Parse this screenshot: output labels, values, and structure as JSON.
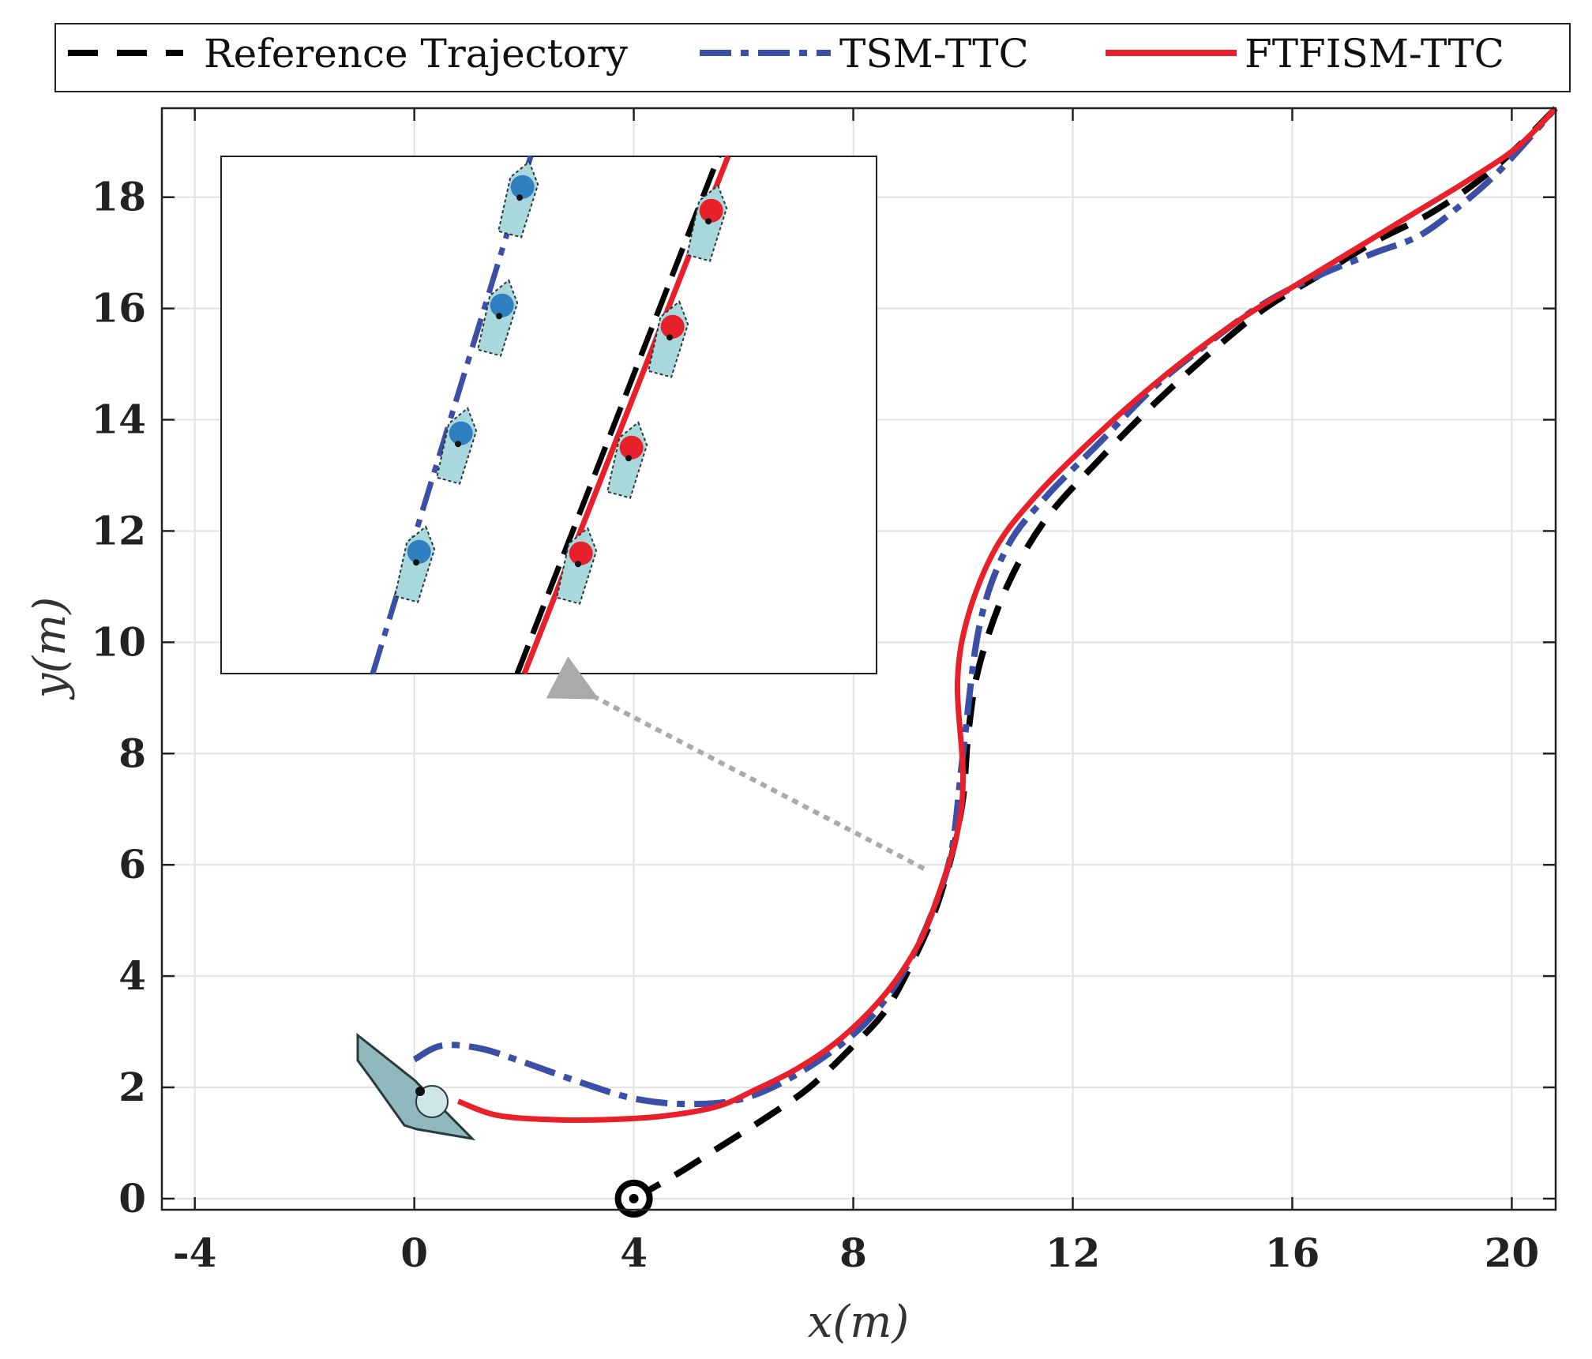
{
  "chart_data": {
    "type": "line",
    "title": "",
    "xlabel": "x(m)",
    "ylabel": "y(m)",
    "xlim": [
      -4.6,
      20.8
    ],
    "ylim": [
      -0.2,
      19.6
    ],
    "grid": true,
    "xticks": [
      {
        "value": -4,
        "label": "-4"
      },
      {
        "value": 0,
        "label": "0"
      },
      {
        "value": 4,
        "label": "4"
      },
      {
        "value": 8,
        "label": "8"
      },
      {
        "value": 12,
        "label": "12"
      },
      {
        "value": 16,
        "label": "16"
      },
      {
        "value": 20,
        "label": "20"
      }
    ],
    "yticks": [
      {
        "value": 0,
        "label": "0"
      },
      {
        "value": 2,
        "label": "2"
      },
      {
        "value": 4,
        "label": "4"
      },
      {
        "value": 6,
        "label": "6"
      },
      {
        "value": 8,
        "label": "8"
      },
      {
        "value": 10,
        "label": "10"
      },
      {
        "value": 12,
        "label": "12"
      },
      {
        "value": 14,
        "label": "14"
      },
      {
        "value": 16,
        "label": "16"
      },
      {
        "value": 18,
        "label": "18"
      }
    ],
    "legend": {
      "placement": "top",
      "entries": [
        {
          "label": "Reference Trajectory",
          "color": "#000000",
          "style": "dashed"
        },
        {
          "label": "TSM-TTC",
          "color": "#3a4fa5",
          "style": "dash-dot"
        },
        {
          "label": "FTFISM-TTC",
          "color": "#e8202a",
          "style": "solid"
        }
      ]
    },
    "series": [
      {
        "name": "Reference Trajectory",
        "color": "#000000",
        "style": "dashed",
        "x": [
          4.0,
          4.8,
          5.6,
          6.4,
          7.2,
          8.0,
          8.6,
          9.1,
          9.5,
          9.8,
          10.0,
          10.1,
          10.3,
          10.8,
          11.5,
          12.5,
          13.5,
          14.5,
          15.5,
          16.5,
          17.5,
          18.5,
          19.4,
          20.1,
          20.8
        ],
        "y": [
          0.0,
          0.45,
          0.95,
          1.45,
          2.0,
          2.75,
          3.4,
          4.3,
          5.2,
          6.2,
          7.2,
          8.4,
          9.6,
          11.0,
          12.2,
          13.3,
          14.3,
          15.2,
          16.0,
          16.6,
          17.2,
          17.7,
          18.3,
          18.9,
          19.6
        ]
      },
      {
        "name": "TSM-TTC",
        "color": "#3a4fa5",
        "style": "dash-dot",
        "x": [
          0.0,
          0.5,
          1.2,
          2.0,
          3.0,
          4.0,
          5.0,
          6.0,
          7.0,
          8.0,
          8.6,
          9.1,
          9.5,
          9.8,
          10.0,
          10.3,
          10.8,
          11.5,
          12.5,
          13.5,
          14.5,
          15.5,
          16.5,
          17.5,
          18.3,
          19.0,
          19.8,
          20.8
        ],
        "y": [
          2.5,
          2.75,
          2.7,
          2.45,
          2.1,
          1.8,
          1.7,
          1.8,
          2.25,
          2.95,
          3.6,
          4.4,
          5.3,
          6.3,
          8.0,
          10.3,
          11.7,
          12.6,
          13.6,
          14.6,
          15.4,
          16.1,
          16.6,
          17.0,
          17.3,
          17.8,
          18.5,
          19.6
        ]
      },
      {
        "name": "FTFISM-TTC",
        "color": "#e8202a",
        "style": "solid",
        "x": [
          0.8,
          1.5,
          2.5,
          3.5,
          4.5,
          5.5,
          6.2,
          7.0,
          7.8,
          8.6,
          9.2,
          9.6,
          9.9,
          10.0,
          9.9,
          10.1,
          10.6,
          11.3,
          12.2,
          13.2,
          14.2,
          15.2,
          16.2,
          17.2,
          18.2,
          19.2,
          20.1,
          20.8
        ],
        "y": [
          1.75,
          1.5,
          1.42,
          1.42,
          1.48,
          1.65,
          1.95,
          2.35,
          2.9,
          3.7,
          4.6,
          5.6,
          6.6,
          7.6,
          9.3,
          10.5,
          11.7,
          12.6,
          13.5,
          14.4,
          15.2,
          15.9,
          16.5,
          17.1,
          17.7,
          18.3,
          18.9,
          19.6
        ]
      }
    ],
    "annotations": [
      {
        "type": "start-marker",
        "label": "start point (circle)",
        "x": 4.0,
        "y": 0.0
      },
      {
        "type": "vessel-icon",
        "label": "initial vessel pose",
        "x": 0.0,
        "y": 1.9
      },
      {
        "type": "inset",
        "label": "zoomed view of vessel poses near x=9.5, y=5.8",
        "points_to": {
          "x": 9.3,
          "y": 5.8
        }
      }
    ]
  }
}
